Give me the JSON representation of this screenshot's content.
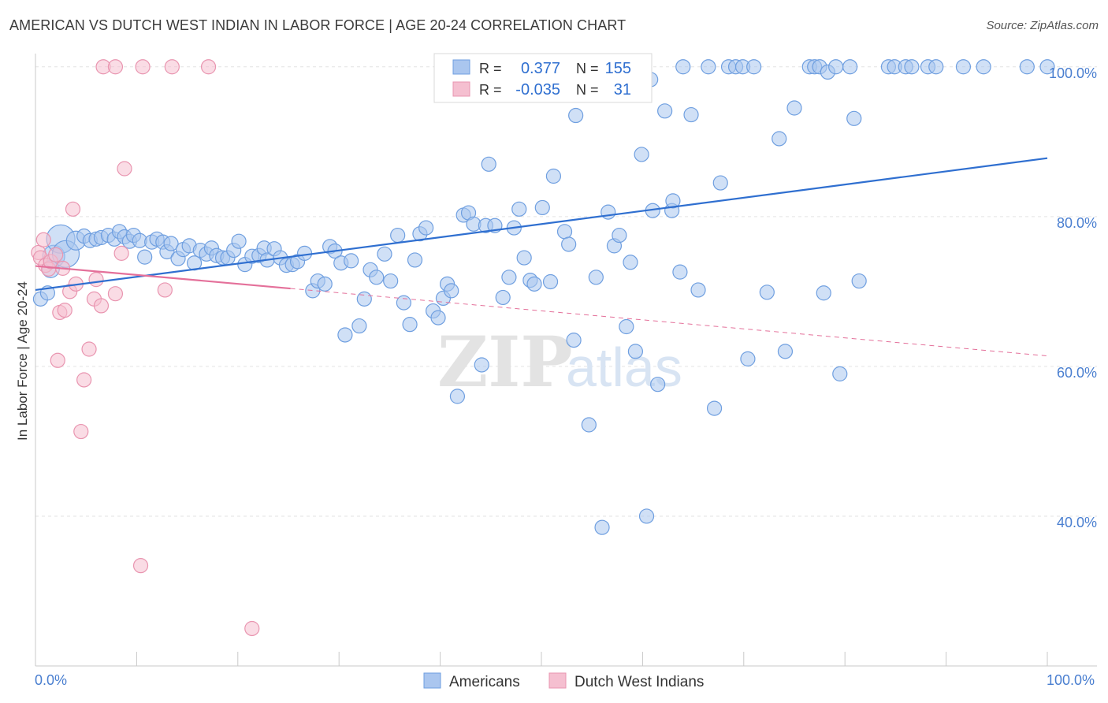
{
  "title": "AMERICAN VS DUTCH WEST INDIAN IN LABOR FORCE | AGE 20-24 CORRELATION CHART",
  "source": "Source: ZipAtlas.com",
  "chart_data": {
    "type": "scatter",
    "ylabel": "In Labor Force | Age 20-24",
    "xlim": [
      0,
      100
    ],
    "ylim": [
      20,
      102.5
    ],
    "x_tick_labels": [
      "0.0%",
      "100.0%"
    ],
    "y_ticks": [
      {
        "value": 100,
        "label": "100.0%"
      },
      {
        "value": 80,
        "label": "80.0%"
      },
      {
        "value": 60,
        "label": "60.0%"
      },
      {
        "value": 40,
        "label": "40.0%"
      }
    ],
    "watermark": {
      "zip": "ZIP",
      "atlas": "atlas"
    },
    "legend": {
      "entries": [
        {
          "series": "Americans",
          "r_label": "R =",
          "r_value": "0.377",
          "n_label": "N =",
          "n_value": "155"
        },
        {
          "series": "Dutch West Indians",
          "r_label": "R =",
          "r_value": "-0.035",
          "n_label": "N =",
          "n_value": "31"
        }
      ]
    },
    "series": [
      {
        "name": "Americans",
        "color": "#6f9fe0",
        "fill": "#aac6ef",
        "line_color": "#2f6fd0",
        "trend": {
          "x0": 0,
          "y0": 70.2,
          "x1": 100,
          "y1": 87.8
        },
        "points": [
          [
            0.5,
            69.0
          ],
          [
            1.2,
            69.8
          ],
          [
            1.5,
            73.0
          ],
          [
            1.8,
            74.7
          ],
          [
            2.5,
            77.0
          ],
          [
            3.0,
            75.0
          ],
          [
            4.0,
            76.8
          ],
          [
            4.8,
            77.4
          ],
          [
            5.4,
            76.8
          ],
          [
            6.0,
            77.0
          ],
          [
            6.5,
            77.2
          ],
          [
            7.2,
            77.5
          ],
          [
            7.8,
            77.0
          ],
          [
            8.3,
            78.0
          ],
          [
            8.8,
            77.3
          ],
          [
            9.3,
            76.7
          ],
          [
            9.7,
            77.5
          ],
          [
            10.3,
            76.8
          ],
          [
            10.8,
            74.6
          ],
          [
            11.5,
            76.6
          ],
          [
            12.0,
            77.0
          ],
          [
            12.6,
            76.6
          ],
          [
            13.0,
            75.3
          ],
          [
            13.4,
            76.4
          ],
          [
            14.1,
            74.4
          ],
          [
            14.6,
            75.6
          ],
          [
            15.2,
            76.1
          ],
          [
            15.7,
            73.8
          ],
          [
            16.3,
            75.5
          ],
          [
            16.9,
            75.0
          ],
          [
            17.4,
            75.8
          ],
          [
            17.9,
            74.8
          ],
          [
            18.5,
            74.5
          ],
          [
            19.0,
            74.5
          ],
          [
            19.6,
            75.5
          ],
          [
            20.1,
            76.7
          ],
          [
            20.7,
            73.6
          ],
          [
            21.4,
            74.7
          ],
          [
            22.1,
            74.8
          ],
          [
            22.6,
            75.8
          ],
          [
            22.9,
            74.2
          ],
          [
            23.6,
            75.7
          ],
          [
            24.2,
            74.5
          ],
          [
            24.8,
            73.5
          ],
          [
            25.4,
            73.6
          ],
          [
            25.9,
            74.0
          ],
          [
            26.6,
            75.1
          ],
          [
            27.4,
            70.1
          ],
          [
            27.9,
            71.4
          ],
          [
            28.6,
            71.0
          ],
          [
            29.1,
            76.0
          ],
          [
            29.6,
            75.4
          ],
          [
            30.2,
            73.8
          ],
          [
            30.6,
            64.2
          ],
          [
            31.2,
            74.1
          ],
          [
            32.0,
            65.4
          ],
          [
            32.5,
            69.0
          ],
          [
            33.1,
            72.9
          ],
          [
            33.7,
            71.9
          ],
          [
            34.5,
            75.0
          ],
          [
            35.1,
            71.4
          ],
          [
            35.8,
            77.5
          ],
          [
            36.4,
            68.5
          ],
          [
            37.0,
            65.6
          ],
          [
            37.5,
            74.2
          ],
          [
            38.0,
            77.7
          ],
          [
            38.6,
            78.5
          ],
          [
            39.3,
            67.4
          ],
          [
            39.8,
            66.5
          ],
          [
            40.3,
            69.1
          ],
          [
            40.7,
            71.0
          ],
          [
            41.1,
            70.1
          ],
          [
            41.7,
            56.0
          ],
          [
            42.3,
            80.2
          ],
          [
            42.8,
            80.5
          ],
          [
            43.3,
            79.0
          ],
          [
            44.1,
            60.2
          ],
          [
            44.5,
            78.8
          ],
          [
            44.8,
            87.0
          ],
          [
            45.4,
            78.8
          ],
          [
            46.2,
            69.2
          ],
          [
            46.8,
            71.9
          ],
          [
            47.3,
            78.5
          ],
          [
            47.8,
            81.0
          ],
          [
            48.3,
            74.5
          ],
          [
            48.9,
            71.5
          ],
          [
            49.3,
            71.0
          ],
          [
            50.1,
            81.2
          ],
          [
            50.9,
            71.3
          ],
          [
            51.2,
            85.4
          ],
          [
            52.3,
            78.0
          ],
          [
            52.7,
            76.3
          ],
          [
            53.2,
            63.5
          ],
          [
            53.4,
            93.5
          ],
          [
            53.8,
            100.0
          ],
          [
            54.7,
            52.2
          ],
          [
            55.4,
            71.9
          ],
          [
            56.0,
            38.5
          ],
          [
            56.6,
            80.6
          ],
          [
            57.2,
            76.1
          ],
          [
            57.7,
            77.5
          ],
          [
            58.4,
            65.3
          ],
          [
            58.8,
            73.9
          ],
          [
            59.3,
            62.0
          ],
          [
            59.9,
            88.3
          ],
          [
            60.4,
            40.0
          ],
          [
            60.8,
            98.3
          ],
          [
            61.0,
            80.8
          ],
          [
            61.5,
            57.6
          ],
          [
            62.2,
            94.1
          ],
          [
            62.9,
            80.8
          ],
          [
            63.0,
            82.1
          ],
          [
            63.7,
            72.6
          ],
          [
            64.0,
            100.0
          ],
          [
            64.8,
            93.6
          ],
          [
            65.5,
            70.2
          ],
          [
            66.5,
            100.0
          ],
          [
            67.1,
            54.4
          ],
          [
            67.7,
            84.5
          ],
          [
            68.5,
            100.0
          ],
          [
            69.2,
            100.0
          ],
          [
            69.9,
            100.0
          ],
          [
            70.4,
            61.0
          ],
          [
            71.0,
            100.0
          ],
          [
            72.3,
            69.9
          ],
          [
            73.5,
            90.4
          ],
          [
            74.1,
            62.0
          ],
          [
            75.0,
            94.5
          ],
          [
            76.5,
            100.0
          ],
          [
            77.0,
            100.0
          ],
          [
            77.5,
            100.0
          ],
          [
            77.9,
            69.8
          ],
          [
            78.3,
            99.3
          ],
          [
            79.1,
            100.0
          ],
          [
            79.5,
            59.0
          ],
          [
            80.5,
            100.0
          ],
          [
            80.9,
            93.1
          ],
          [
            81.4,
            71.4
          ],
          [
            84.3,
            100.0
          ],
          [
            84.9,
            100.0
          ],
          [
            86.0,
            100.0
          ],
          [
            86.6,
            100.0
          ],
          [
            88.2,
            100.0
          ],
          [
            89.0,
            100.0
          ],
          [
            91.7,
            100.0
          ],
          [
            93.7,
            100.0
          ],
          [
            98.0,
            100.0
          ],
          [
            100.0,
            100.0
          ]
        ]
      },
      {
        "name": "Dutch West Indians",
        "color": "#e995b0",
        "fill": "#f5bfd0",
        "line_color": "#e4709a",
        "trend": {
          "x0": 0,
          "y0": 73.4,
          "x1": 25.2,
          "y1": 70.4
        },
        "trend_dashed": {
          "x0": 25.2,
          "y0": 70.4,
          "x1": 100,
          "y1": 61.4
        },
        "points": [
          [
            0.3,
            75.2
          ],
          [
            0.5,
            74.5
          ],
          [
            0.8,
            76.9
          ],
          [
            1.0,
            73.5
          ],
          [
            1.3,
            73.0
          ],
          [
            1.5,
            74.0
          ],
          [
            2.0,
            74.9
          ],
          [
            2.2,
            60.8
          ],
          [
            2.4,
            67.2
          ],
          [
            2.7,
            73.1
          ],
          [
            2.9,
            67.5
          ],
          [
            3.4,
            70.0
          ],
          [
            3.7,
            81.0
          ],
          [
            4.0,
            71.0
          ],
          [
            4.5,
            51.3
          ],
          [
            4.8,
            58.2
          ],
          [
            5.3,
            62.3
          ],
          [
            5.8,
            69.0
          ],
          [
            6.0,
            71.6
          ],
          [
            6.5,
            68.1
          ],
          [
            6.7,
            100.0
          ],
          [
            7.9,
            100.0
          ],
          [
            7.9,
            69.7
          ],
          [
            8.5,
            75.1
          ],
          [
            8.8,
            86.4
          ],
          [
            10.4,
            33.4
          ],
          [
            10.6,
            100.0
          ],
          [
            12.8,
            70.2
          ],
          [
            13.5,
            100.0
          ],
          [
            17.1,
            100.0
          ],
          [
            21.4,
            25.0
          ]
        ]
      }
    ]
  }
}
